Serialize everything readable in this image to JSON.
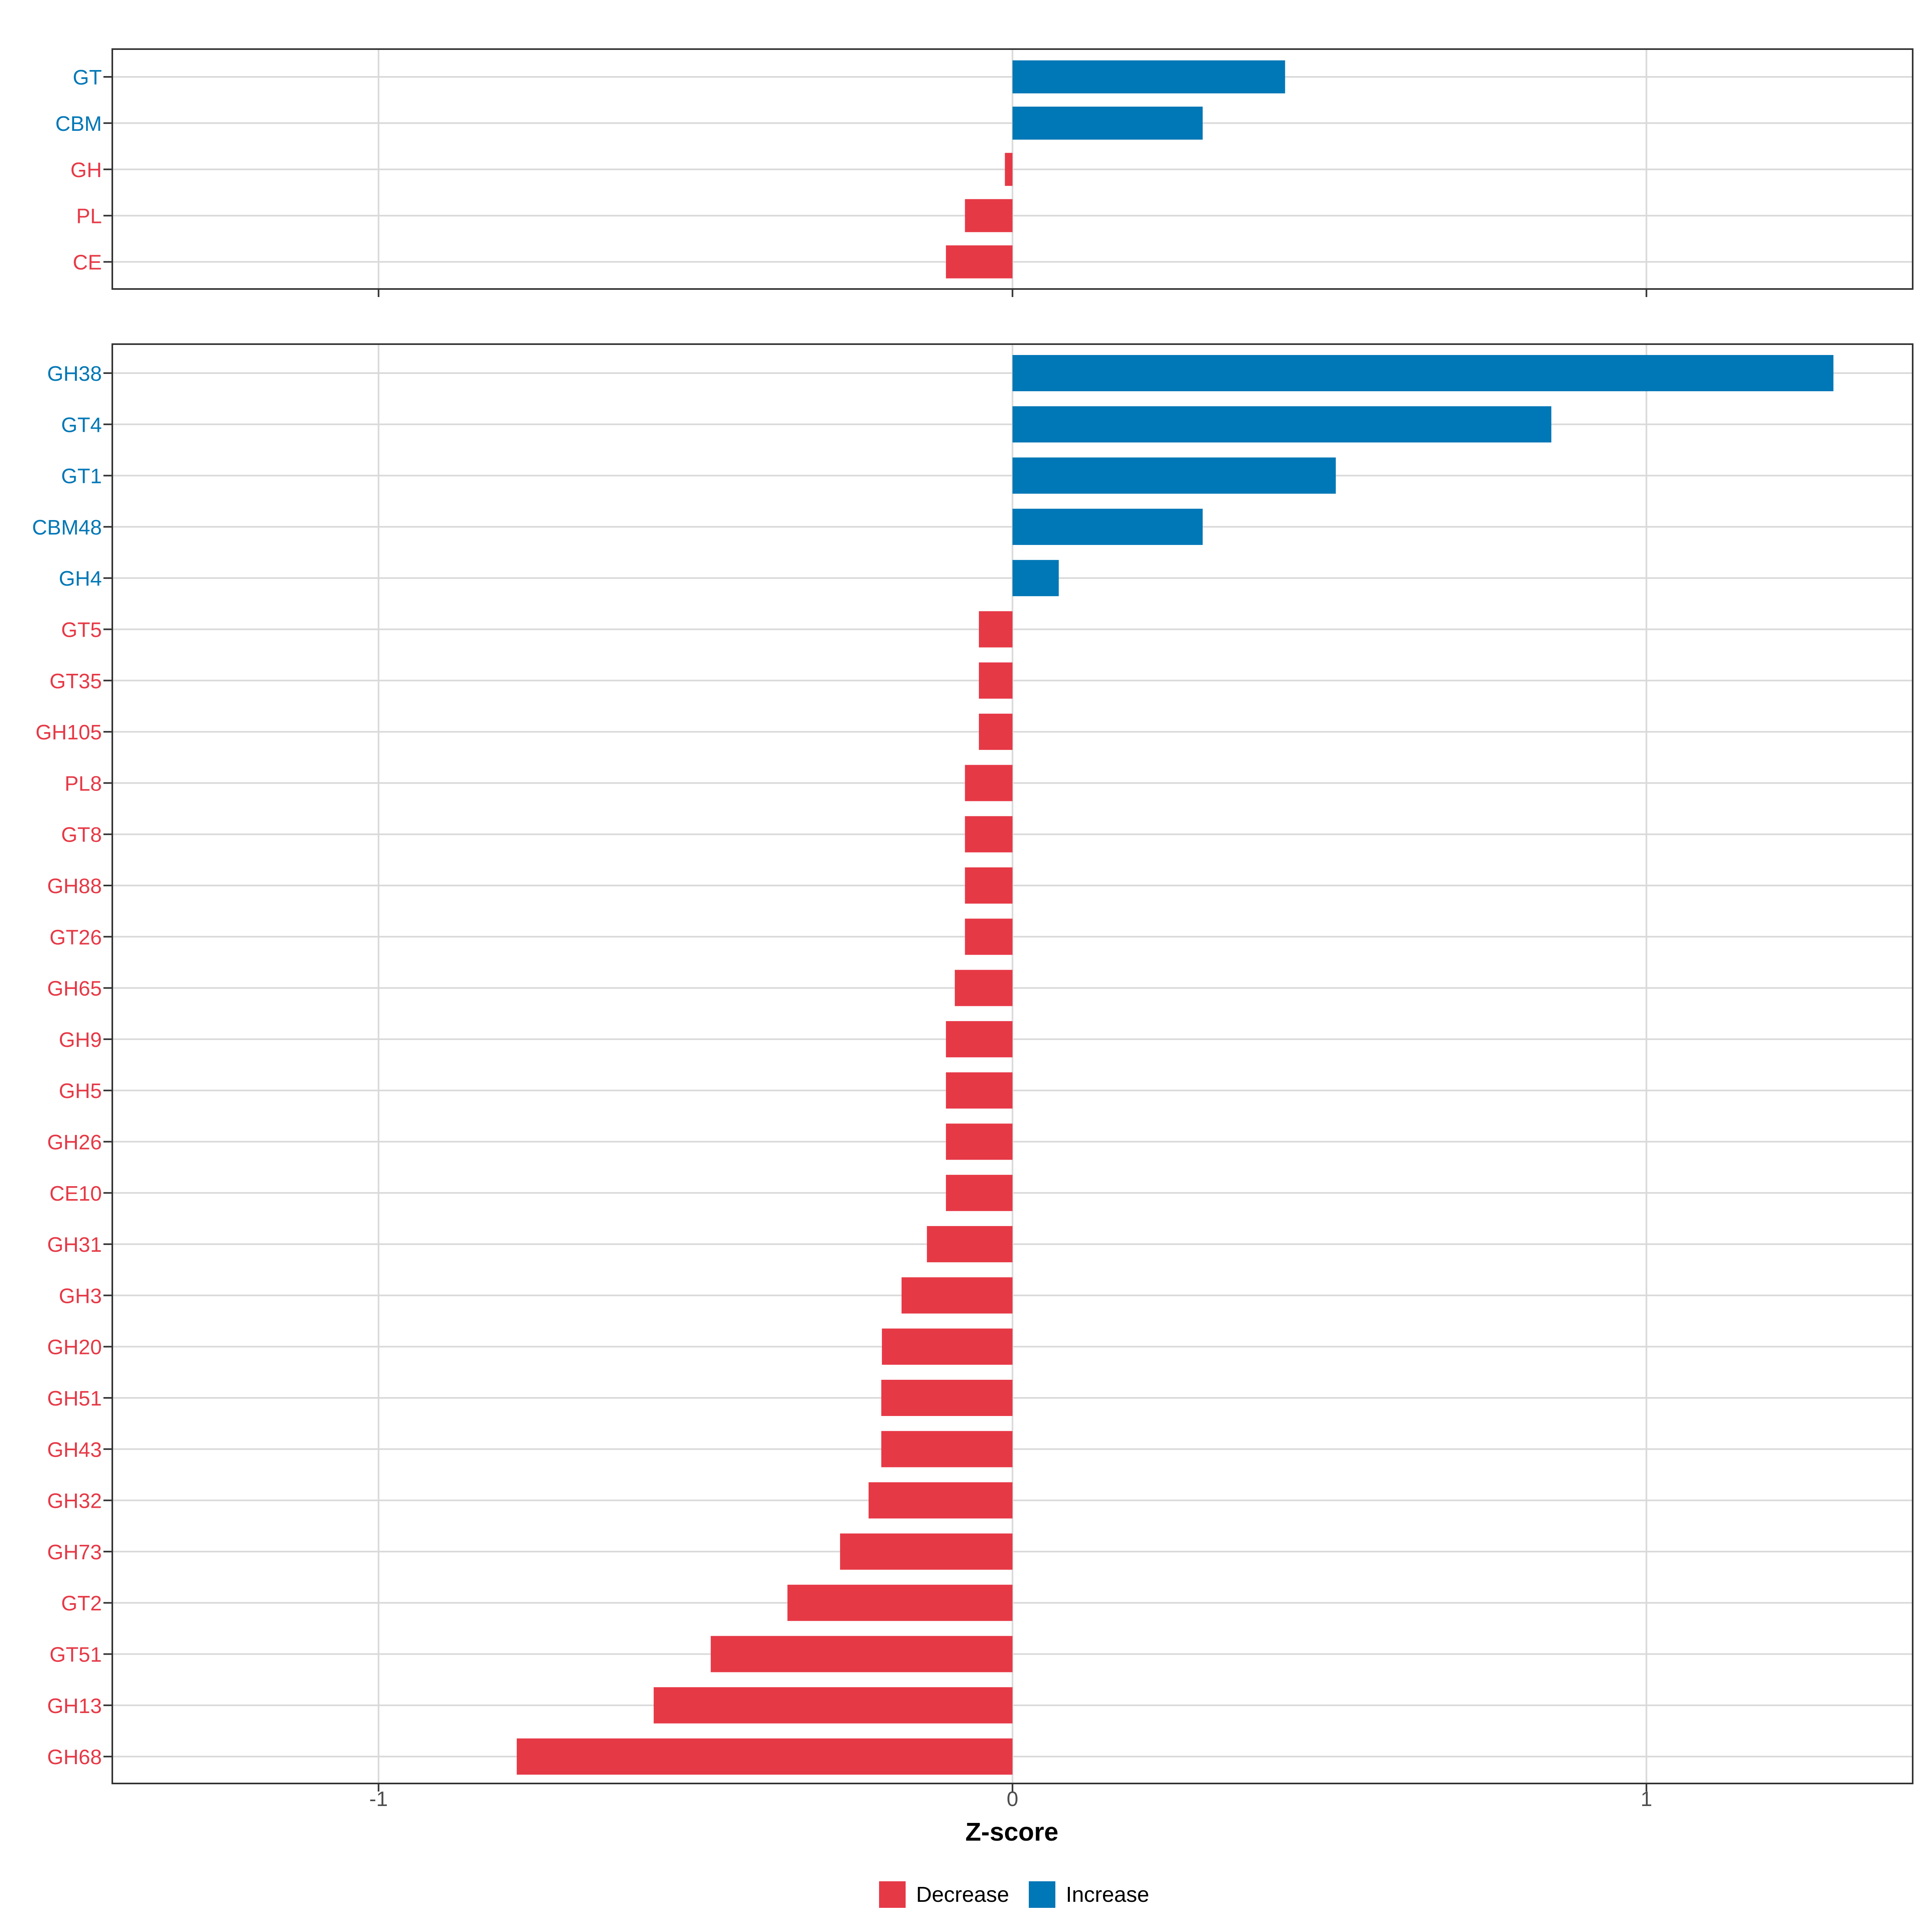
{
  "chart_data": [
    {
      "type": "bar",
      "orientation": "horizontal",
      "panel": "top",
      "categories": [
        "GT",
        "CBM",
        "GH",
        "PL",
        "CE"
      ],
      "values": [
        0.43,
        0.3,
        -0.012,
        -0.075,
        -0.105
      ],
      "groups": [
        "Increase",
        "Increase",
        "Decrease",
        "Decrease",
        "Decrease"
      ],
      "xlim": [
        -1.42,
        1.42
      ],
      "grid": true
    },
    {
      "type": "bar",
      "orientation": "horizontal",
      "panel": "bottom",
      "categories": [
        "GH38",
        "GT4",
        "GT1",
        "CBM48",
        "GH4",
        "GT5",
        "GT35",
        "GH105",
        "PL8",
        "GT8",
        "GH88",
        "GT26",
        "GH65",
        "GH9",
        "GH5",
        "GH26",
        "CE10",
        "GH31",
        "GH3",
        "GH20",
        "GH51",
        "GH43",
        "GH32",
        "GH73",
        "GT2",
        "GT51",
        "GH13",
        "GH68"
      ],
      "values": [
        1.295,
        0.85,
        0.51,
        0.3,
        0.073,
        -0.053,
        -0.053,
        -0.053,
        -0.075,
        -0.075,
        -0.075,
        -0.075,
        -0.091,
        -0.105,
        -0.105,
        -0.105,
        -0.105,
        -0.135,
        -0.175,
        -0.206,
        -0.207,
        -0.207,
        -0.227,
        -0.272,
        -0.355,
        -0.476,
        -0.566,
        -0.782
      ],
      "groups": [
        "Increase",
        "Increase",
        "Increase",
        "Increase",
        "Increase",
        "Decrease",
        "Decrease",
        "Decrease",
        "Decrease",
        "Decrease",
        "Decrease",
        "Decrease",
        "Decrease",
        "Decrease",
        "Decrease",
        "Decrease",
        "Decrease",
        "Decrease",
        "Decrease",
        "Decrease",
        "Decrease",
        "Decrease",
        "Decrease",
        "Decrease",
        "Decrease",
        "Decrease",
        "Decrease",
        "Decrease"
      ],
      "xlim": [
        -1.42,
        1.42
      ],
      "grid": true
    }
  ],
  "x_axis": {
    "title": "Z-score",
    "ticks": [
      {
        "value": -1,
        "label": "-1"
      },
      {
        "value": 0,
        "label": "0"
      },
      {
        "value": 1,
        "label": "1"
      }
    ]
  },
  "legend": {
    "position": "bottom",
    "items": [
      {
        "name": "Decrease",
        "label": "Decrease",
        "color": "#e63946"
      },
      {
        "name": "Increase",
        "label": "Increase",
        "color": "#0077b6"
      }
    ]
  },
  "colors": {
    "increase": "#0077b6",
    "decrease": "#e63946",
    "grid": "#d9d9d9",
    "panel_border": "#333333",
    "tick_text": "#4d4d4d"
  }
}
